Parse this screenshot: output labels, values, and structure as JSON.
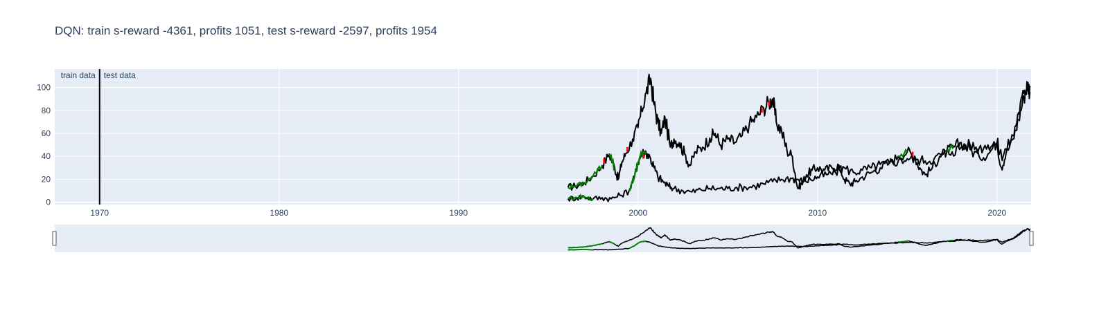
{
  "chart_data": {
    "type": "line",
    "title": "DQN: train s-reward -4361, profits 1051, test s-reward -2597, profits 1954",
    "xlabel": "",
    "ylabel": "",
    "xlim": [
      1967.5,
      2021.9
    ],
    "ylim": [
      -2,
      116
    ],
    "x_ticks": [
      "1970",
      "1980",
      "1990",
      "2000",
      "2010",
      "2020"
    ],
    "y_ticks": [
      "0",
      "20",
      "40",
      "60",
      "80",
      "100"
    ],
    "grid": true,
    "range_slider": true,
    "split_line": {
      "x": 1970.0
    },
    "annotations": {
      "train_label": "train data",
      "test_label": "test data"
    },
    "colors": {
      "price": "#000000",
      "buy": "#008000",
      "sell": "#ff0000",
      "plot_bg": "#e5ecf6",
      "grid": "#ffffff",
      "text": "#2a3f5f"
    },
    "series": [
      {
        "values": [
          [
            1996.1,
            13
          ],
          [
            1996.5,
            14
          ],
          [
            1997.0,
            17
          ],
          [
            1997.5,
            23
          ],
          [
            1998.0,
            32
          ],
          [
            1998.4,
            42
          ],
          [
            1998.7,
            30
          ],
          [
            1998.9,
            20
          ],
          [
            1999.1,
            35
          ],
          [
            1999.3,
            42
          ],
          [
            1999.7,
            55
          ],
          [
            2000.0,
            65
          ],
          [
            2000.2,
            80
          ],
          [
            2000.45,
            95
          ],
          [
            2000.7,
            108
          ],
          [
            2000.9,
            85
          ],
          [
            2001.1,
            70
          ],
          [
            2001.3,
            60
          ],
          [
            2001.5,
            74
          ],
          [
            2001.8,
            48
          ],
          [
            2002.0,
            55
          ],
          [
            2002.3,
            52
          ],
          [
            2002.6,
            42
          ],
          [
            2002.9,
            32
          ],
          [
            2003.2,
            44
          ],
          [
            2003.6,
            48
          ],
          [
            2004.0,
            56
          ],
          [
            2004.3,
            60
          ],
          [
            2004.6,
            50
          ],
          [
            2005.0,
            55
          ],
          [
            2005.4,
            52
          ],
          [
            2005.8,
            58
          ],
          [
            2006.2,
            68
          ],
          [
            2006.6,
            74
          ],
          [
            2007.0,
            82
          ],
          [
            2007.3,
            87
          ],
          [
            2007.5,
            90
          ],
          [
            2007.7,
            70
          ],
          [
            2008.0,
            62
          ],
          [
            2008.3,
            45
          ],
          [
            2008.6,
            40
          ],
          [
            2008.9,
            12
          ],
          [
            2009.1,
            16
          ],
          [
            2009.4,
            24
          ],
          [
            2009.7,
            28
          ],
          [
            2010.0,
            30
          ],
          [
            2010.4,
            28
          ],
          [
            2010.8,
            30
          ],
          [
            2011.2,
            32
          ],
          [
            2011.5,
            20
          ],
          [
            2011.8,
            16
          ],
          [
            2012.1,
            18
          ],
          [
            2012.5,
            22
          ],
          [
            2013.0,
            26
          ],
          [
            2013.5,
            30
          ],
          [
            2014.0,
            34
          ],
          [
            2014.5,
            40
          ],
          [
            2015.0,
            44
          ],
          [
            2015.4,
            40
          ],
          [
            2015.7,
            30
          ],
          [
            2016.0,
            24
          ],
          [
            2016.4,
            30
          ],
          [
            2016.8,
            40
          ],
          [
            2017.2,
            44
          ],
          [
            2017.6,
            48
          ],
          [
            2018.0,
            52
          ],
          [
            2018.5,
            46
          ],
          [
            2019.0,
            40
          ],
          [
            2019.5,
            42
          ],
          [
            2020.0,
            52
          ],
          [
            2020.25,
            30
          ],
          [
            2020.5,
            42
          ],
          [
            2020.9,
            55
          ],
          [
            2021.2,
            72
          ],
          [
            2021.5,
            92
          ],
          [
            2021.7,
            103
          ],
          [
            2021.85,
            96
          ]
        ]
      },
      {
        "values": [
          [
            1996.1,
            3
          ],
          [
            1996.6,
            4
          ],
          [
            1997.0,
            5
          ],
          [
            1997.5,
            3
          ],
          [
            1998.0,
            4
          ],
          [
            1998.5,
            3
          ],
          [
            1999.0,
            6
          ],
          [
            1999.5,
            10
          ],
          [
            1999.8,
            22
          ],
          [
            2000.0,
            35
          ],
          [
            2000.2,
            42
          ],
          [
            2000.45,
            44
          ],
          [
            2000.7,
            38
          ],
          [
            2000.9,
            30
          ],
          [
            2001.1,
            22
          ],
          [
            2001.4,
            18
          ],
          [
            2001.7,
            14
          ],
          [
            2002.0,
            12
          ],
          [
            2002.5,
            10
          ],
          [
            2003.0,
            9
          ],
          [
            2003.5,
            11
          ],
          [
            2004.0,
            12
          ],
          [
            2004.5,
            12
          ],
          [
            2005.0,
            12
          ],
          [
            2005.5,
            13
          ],
          [
            2006.0,
            13
          ],
          [
            2006.5,
            14
          ],
          [
            2007.0,
            16
          ],
          [
            2007.5,
            18
          ],
          [
            2008.0,
            20
          ],
          [
            2008.5,
            21
          ],
          [
            2008.9,
            20
          ],
          [
            2009.2,
            18
          ],
          [
            2009.6,
            20
          ],
          [
            2010.0,
            22
          ],
          [
            2010.5,
            24
          ],
          [
            2011.0,
            26
          ],
          [
            2011.5,
            30
          ],
          [
            2012.0,
            26
          ],
          [
            2012.5,
            28
          ],
          [
            2013.0,
            30
          ],
          [
            2013.5,
            33
          ],
          [
            2014.0,
            34
          ],
          [
            2014.5,
            36
          ],
          [
            2015.0,
            38
          ],
          [
            2015.5,
            37
          ],
          [
            2016.0,
            36
          ],
          [
            2016.5,
            38
          ],
          [
            2017.0,
            42
          ],
          [
            2017.5,
            44
          ],
          [
            2018.0,
            48
          ],
          [
            2018.5,
            50
          ],
          [
            2019.0,
            47
          ],
          [
            2019.5,
            50
          ],
          [
            2020.0,
            52
          ],
          [
            2020.25,
            40
          ],
          [
            2020.5,
            46
          ],
          [
            2020.9,
            58
          ],
          [
            2021.2,
            78
          ],
          [
            2021.5,
            95
          ],
          [
            2021.7,
            104
          ],
          [
            2021.85,
            100
          ]
        ]
      }
    ],
    "buy_segments": [
      [
        [
          1996.1,
          13
        ],
        [
          1996.5,
          14
        ],
        [
          1997.0,
          17
        ],
        [
          1997.5,
          23
        ],
        [
          1998.0,
          32
        ]
      ],
      [
        [
          1998.4,
          42
        ],
        [
          1998.7,
          30
        ]
      ],
      [
        [
          1996.1,
          3
        ],
        [
          1996.6,
          4
        ],
        [
          1997.0,
          5
        ],
        [
          1997.5,
          3
        ]
      ],
      [
        [
          1999.5,
          10
        ],
        [
          1999.8,
          22
        ],
        [
          2000.0,
          35
        ],
        [
          2000.2,
          42
        ],
        [
          2000.45,
          44
        ]
      ],
      [
        [
          2014.5,
          40
        ],
        [
          2015.0,
          44
        ]
      ],
      [
        [
          2017.2,
          44
        ],
        [
          2017.6,
          48
        ]
      ]
    ],
    "sell_points": [
      [
        1998.1,
        36
      ],
      [
        1999.4,
        46
      ],
      [
        2000.3,
        40
      ],
      [
        2006.9,
        80
      ],
      [
        2007.3,
        86
      ],
      [
        2015.3,
        42
      ]
    ]
  }
}
